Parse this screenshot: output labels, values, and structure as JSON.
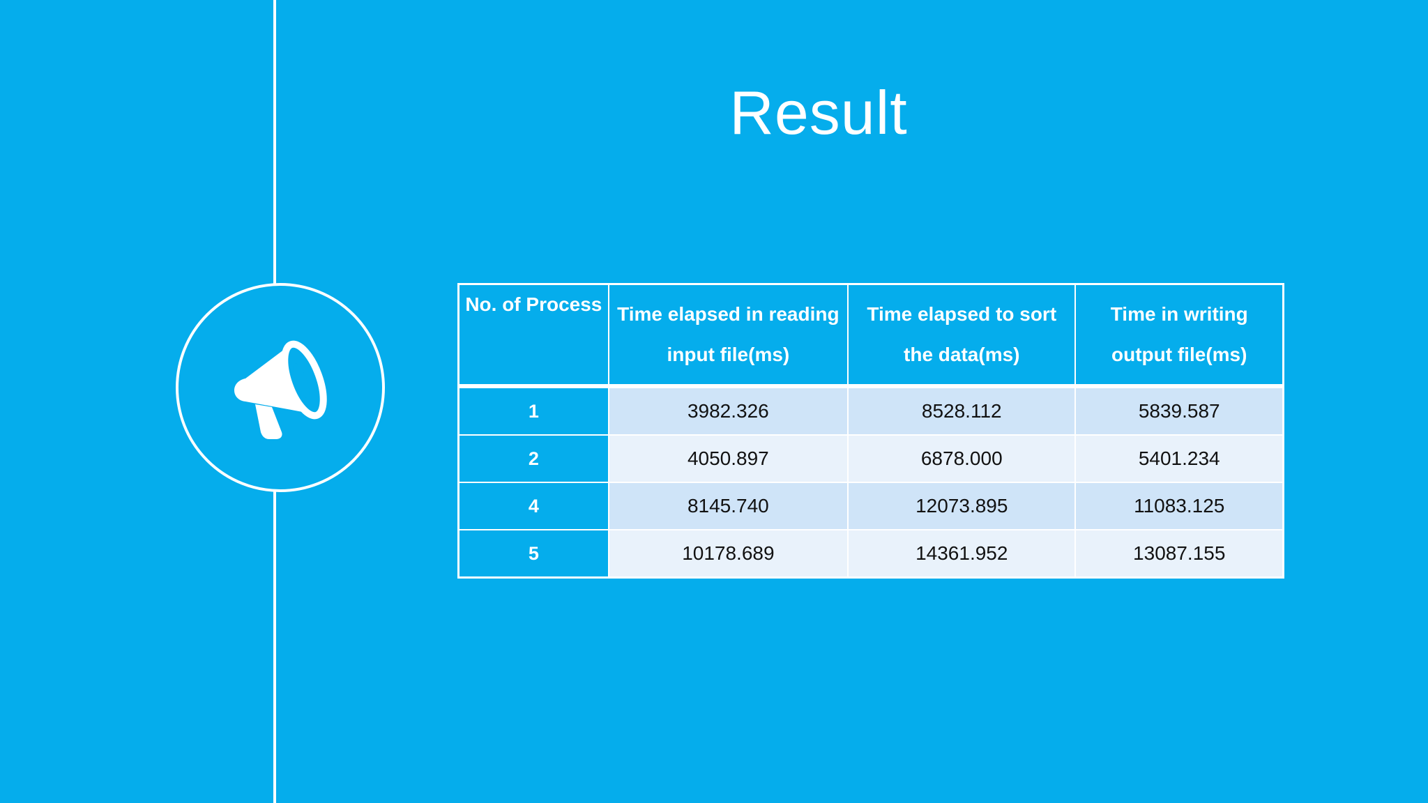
{
  "slide": {
    "title": "Result",
    "icon": "megaphone-icon"
  },
  "table": {
    "headers": [
      [
        "No. of Process"
      ],
      [
        "Time elapsed in reading",
        "input file(ms)"
      ],
      [
        "Time elapsed to sort",
        "the data(ms)"
      ],
      [
        "Time in writing",
        "output file(ms)"
      ]
    ],
    "rows": [
      {
        "process": "1",
        "read": "3982.326",
        "sort": "8528.112",
        "write": "5839.587"
      },
      {
        "process": "2",
        "read": "4050.897",
        "sort": "6878.000",
        "write": "5401.234"
      },
      {
        "process": "4",
        "read": "8145.740",
        "sort": "12073.895",
        "write": "11083.125"
      },
      {
        "process": "5",
        "read": "10178.689",
        "sort": "14361.952",
        "write": "13087.155"
      }
    ]
  },
  "colors": {
    "background": "#05ADEC",
    "row_odd": "#CFE4F8",
    "row_even": "#E9F2FB",
    "text_light": "#FFFFFF",
    "text_dark": "#111111"
  }
}
